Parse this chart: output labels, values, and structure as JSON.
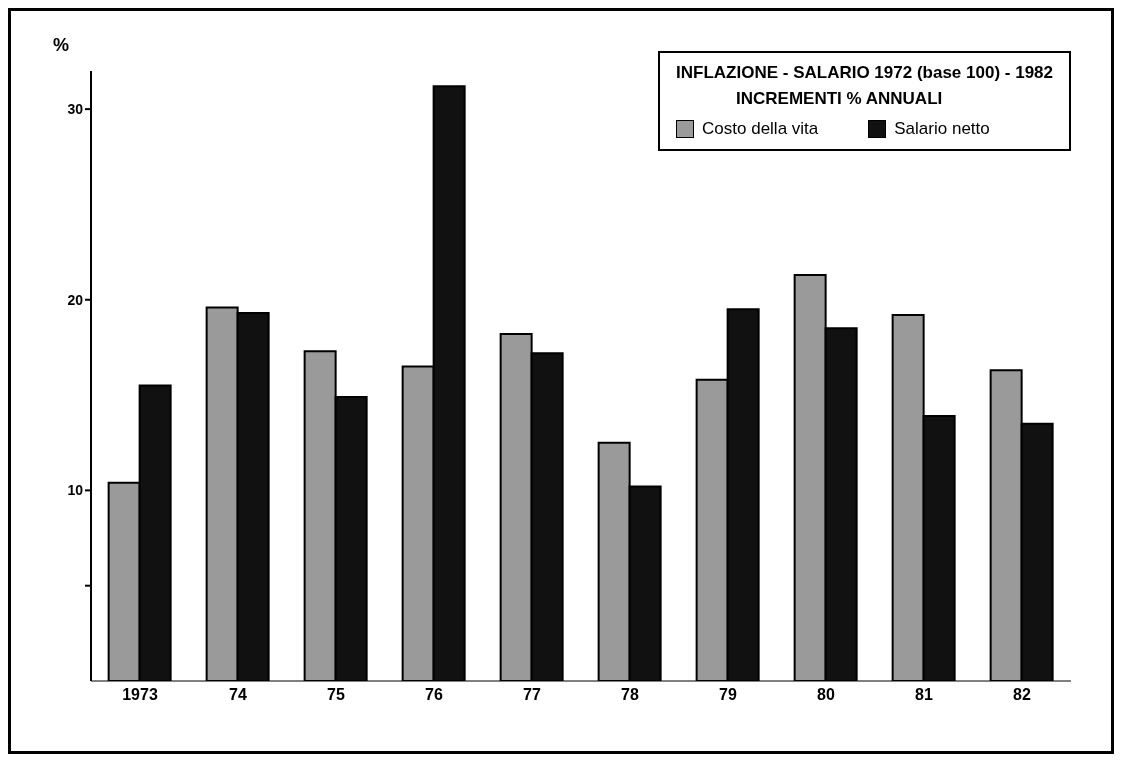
{
  "chart_data": {
    "type": "bar",
    "title": "INFLAZIONE - SALARIO  1972 (base 100) - 1982",
    "subtitle": "INCREMENTI % ANNUALI",
    "ylabel": "%",
    "categories": [
      "1973",
      "74",
      "75",
      "76",
      "77",
      "78",
      "79",
      "80",
      "81",
      "82"
    ],
    "series": [
      {
        "name": "Costo della vita",
        "color": "#9a9a9a",
        "values": [
          10.4,
          19.6,
          17.3,
          16.5,
          18.2,
          12.5,
          15.8,
          21.3,
          19.2,
          16.3
        ]
      },
      {
        "name": "Salario netto",
        "color": "#111111",
        "values": [
          15.5,
          19.3,
          14.9,
          31.2,
          17.2,
          10.2,
          19.5,
          18.5,
          13.9,
          13.5
        ]
      }
    ],
    "ylim": [
      0,
      32
    ],
    "yticks": [
      {
        "value": 5,
        "label": null
      },
      10,
      20,
      30
    ],
    "legend": "top right"
  }
}
